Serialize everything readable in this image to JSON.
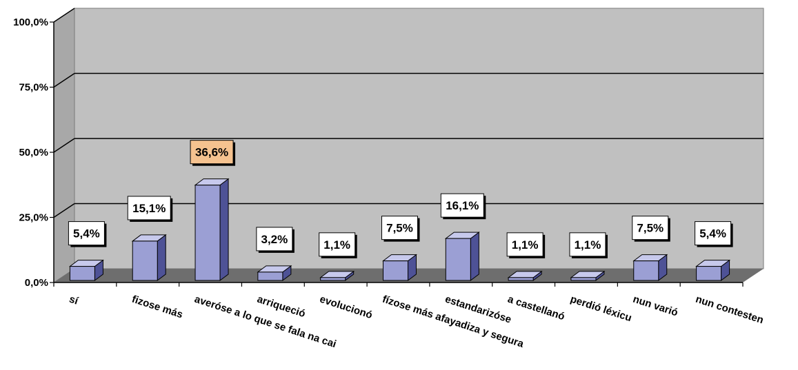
{
  "chart_data": {
    "type": "bar",
    "categories": [
      "sí",
      "fizose más",
      "averóse a lo que se fala na cai",
      "arriqueció",
      "evolucionó",
      "fízose más afayadiza y segura",
      "estandarizóse",
      "a castellanó",
      "perdió léxicu",
      "nun varió",
      "nun contesten"
    ],
    "values": [
      5.4,
      15.1,
      36.6,
      3.2,
      1.1,
      7.5,
      16.1,
      1.1,
      1.1,
      7.5,
      5.4
    ],
    "data_labels": [
      "5,4%",
      "15,1%",
      "36,6%",
      "3,2%",
      "1,1%",
      "7,5%",
      "16,1%",
      "1,1%",
      "1,1%",
      "7,5%",
      "5,4%"
    ],
    "y_ticks": [
      "0,0%",
      "25,0%",
      "50,0%",
      "75,0%",
      "100,0%"
    ],
    "ylim": [
      0,
      100
    ],
    "highlight_index": 2,
    "grid": true,
    "legend": "none",
    "colors": {
      "bar_front": "#9b9fd4",
      "bar_side": "#4e5296",
      "bar_top": "#c7c9ec",
      "wall": "#c0c0c0",
      "floor": "#6e6e6e",
      "label_bg": "#ffffff",
      "highlight_label_bg": "#f5c28f"
    }
  }
}
